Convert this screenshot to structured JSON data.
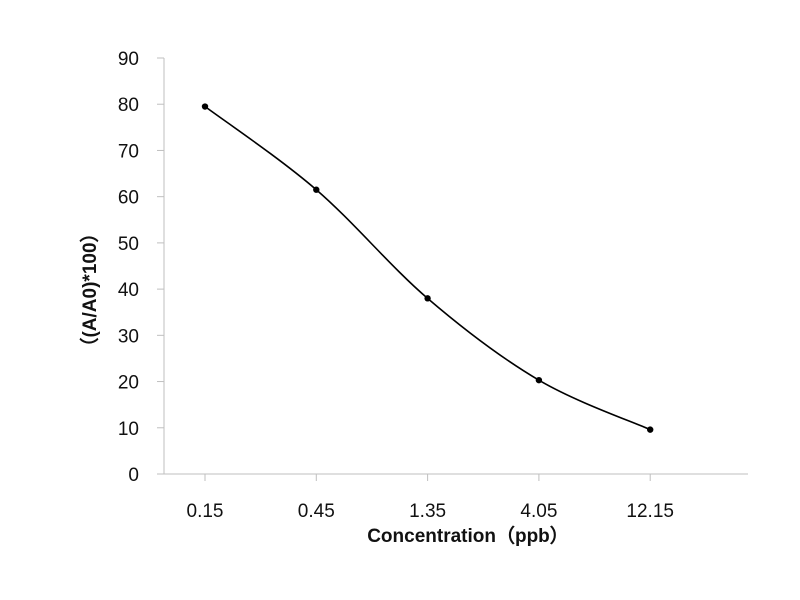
{
  "chart_data": {
    "type": "line",
    "title": "",
    "xlabel": "Concentration（ppb）",
    "ylabel": "（(A/A0)*100）",
    "categories": [
      "0.15",
      "0.45",
      "1.35",
      "4.05",
      "12.15"
    ],
    "series": [
      {
        "values": [
          79.5,
          61.5,
          38,
          20.3,
          9.6
        ],
        "color": "#000000"
      }
    ],
    "ylim": [
      0,
      90
    ],
    "yticks": [
      "0",
      "10",
      "20",
      "30",
      "40",
      "50",
      "60",
      "70",
      "80",
      "90"
    ],
    "grid": false,
    "smooth": true,
    "legend": "none"
  }
}
